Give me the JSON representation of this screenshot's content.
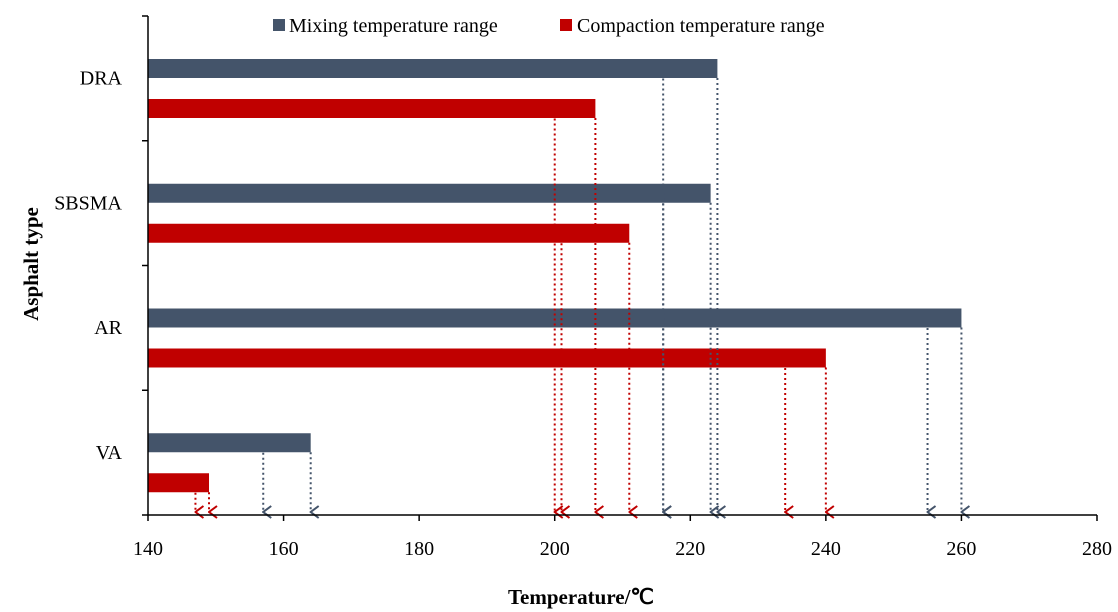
{
  "chart_data": {
    "type": "bar",
    "orientation": "horizontal",
    "categories": [
      "DRA",
      "SBSMA",
      "AR",
      "VA"
    ],
    "series": [
      {
        "name": "Mixing temperature range",
        "color": "#44546a",
        "values": [
          224,
          223,
          260,
          164
        ],
        "range_low": [
          216,
          216,
          255,
          157
        ]
      },
      {
        "name": "Compaction temperature range",
        "color": "#c00000",
        "values": [
          206,
          211,
          240,
          149
        ],
        "range_low": [
          200,
          201,
          234,
          147
        ]
      }
    ],
    "xlabel": "Temperature/℃",
    "ylabel": "Asphalt type",
    "xlim": [
      140,
      280
    ],
    "xticks": [
      "140",
      "160",
      "180",
      "200",
      "220",
      "240",
      "260",
      "280"
    ],
    "grid": false,
    "legend": "top-center"
  }
}
